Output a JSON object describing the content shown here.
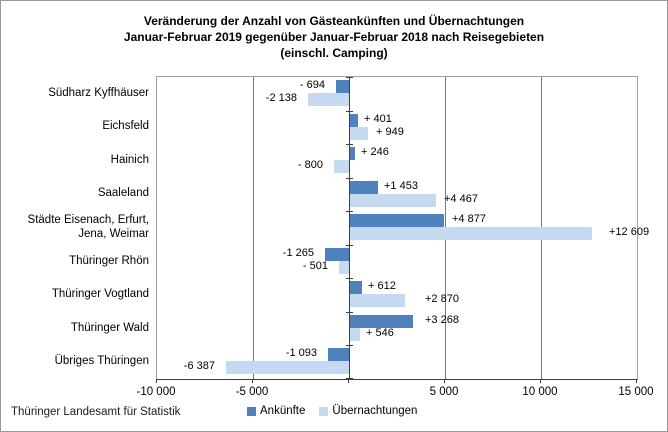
{
  "title": {
    "line1": "Veränderung der Anzahl von Gästeankünften und Übernachtungen",
    "line2": "Januar-Februar 2019 gegenüber Januar-Februar 2018 nach Reisegebieten",
    "line3": "(einschl. Camping)"
  },
  "source": "Thüringer Landesamt für Statistik",
  "colors": {
    "ankuenfte": "#4f81bd",
    "uebernachtungen": "#c5d9f1",
    "axis": "#404040",
    "gridline": "#7a7a7a",
    "plot_border": "#a0a0a0"
  },
  "chart_data": {
    "type": "bar",
    "orientation": "horizontal",
    "title": "Veränderung der Anzahl von Gästeankünften und Übernachtungen Januar-Februar 2019 gegenüber Januar-Februar 2018 nach Reisegebieten (einschl. Camping)",
    "categories": [
      "Südharz Kyffhäuser",
      "Eichsfeld",
      "Hainich",
      "Saaleland",
      "Städte Eisenach, Erfurt, Jena, Weimar",
      "Thüringer Rhön",
      "Thüringer Vogtland",
      "Thüringer Wald",
      "Übriges Thüringen"
    ],
    "series": [
      {
        "name": "Ankünfte",
        "color": "#4f81bd",
        "values": [
          -694,
          401,
          246,
          1453,
          4877,
          -1265,
          612,
          3268,
          -1093
        ],
        "labels": [
          "- 694",
          "+ 401",
          "+ 246",
          "+1 453",
          "+4 877",
          "-1 265",
          "+ 612",
          "+3 268",
          "-1 093"
        ],
        "label_dx": [
          0,
          0,
          0,
          0,
          2,
          0,
          0,
          6,
          0
        ]
      },
      {
        "name": "Übernachtungen",
        "color": "#c5d9f1",
        "values": [
          -2138,
          949,
          -800,
          4467,
          12609,
          -501,
          2870,
          546,
          -6387
        ],
        "labels": [
          "-2 138",
          "+ 949",
          "- 800",
          "+4 467",
          "+12 609",
          "- 501",
          "+2 870",
          "+ 546",
          "-6 387"
        ],
        "label_dx": [
          0,
          2,
          0,
          2,
          11,
          0,
          14,
          0,
          0
        ]
      }
    ],
    "xlim": [
      -10000,
      15000
    ],
    "x_ticks": [
      {
        "value": -10000,
        "label": "-10 000"
      },
      {
        "value": -5000,
        "label": "-5 000"
      },
      {
        "value": 5000,
        "label": "5 000"
      },
      {
        "value": 10000,
        "label": "10 000"
      },
      {
        "value": 15000,
        "label": "15 000"
      }
    ],
    "tick_marks": [
      -10000,
      -5000,
      0,
      5000,
      10000,
      15000
    ],
    "gridlines": [
      -5000,
      5000,
      10000
    ],
    "grid": "vertical",
    "legend_position": "bottom",
    "data_label_position": "outside-end"
  }
}
